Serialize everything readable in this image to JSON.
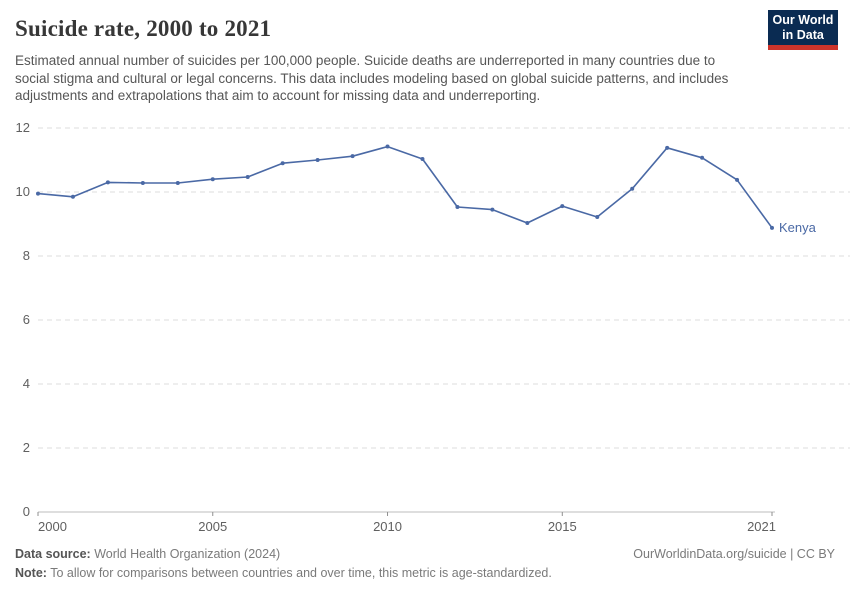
{
  "header": {
    "title": "Suicide rate, 2000 to 2021",
    "subtitle": "Estimated annual number of suicides per 100,000 people. Suicide deaths are underreported in many countries due to social stigma and cultural or legal concerns. This data includes modeling based on global suicide patterns, and includes adjustments and extrapolations that aim to account for missing data and underreporting."
  },
  "logo": {
    "line1": "Our World",
    "line2": "in Data",
    "bg_color": "#0A2B52",
    "stripe_color": "#CC342B"
  },
  "chart_data": {
    "type": "line",
    "title": "Suicide rate, 2000 to 2021",
    "xlabel": "",
    "ylabel": "",
    "xlim": [
      2000,
      2021
    ],
    "ylim": [
      0,
      12
    ],
    "x_ticks": [
      2000,
      2005,
      2010,
      2015,
      2021
    ],
    "y_ticks": [
      0,
      2,
      4,
      6,
      8,
      10,
      12
    ],
    "grid": "horizontal-dashed",
    "legend_position": "end-of-line",
    "x": [
      2000,
      2001,
      2002,
      2003,
      2004,
      2005,
      2006,
      2007,
      2008,
      2009,
      2010,
      2011,
      2012,
      2013,
      2014,
      2015,
      2016,
      2017,
      2018,
      2019,
      2020,
      2021
    ],
    "series": [
      {
        "name": "Kenya",
        "color": "#4A69A5",
        "values": [
          9.95,
          9.85,
          10.3,
          10.28,
          10.28,
          10.4,
          10.47,
          10.9,
          11.0,
          11.12,
          11.42,
          11.03,
          9.53,
          9.45,
          9.03,
          9.56,
          9.22,
          10.1,
          11.38,
          11.07,
          10.38,
          8.88
        ]
      }
    ]
  },
  "footer": {
    "source_label": "Data source:",
    "source_value": " World Health Organization (2024)",
    "rights": "OurWorldinData.org/suicide | CC BY",
    "note_label": "Note:",
    "note_value": " To allow for comparisons between countries and over time, this metric is age-standardized."
  }
}
